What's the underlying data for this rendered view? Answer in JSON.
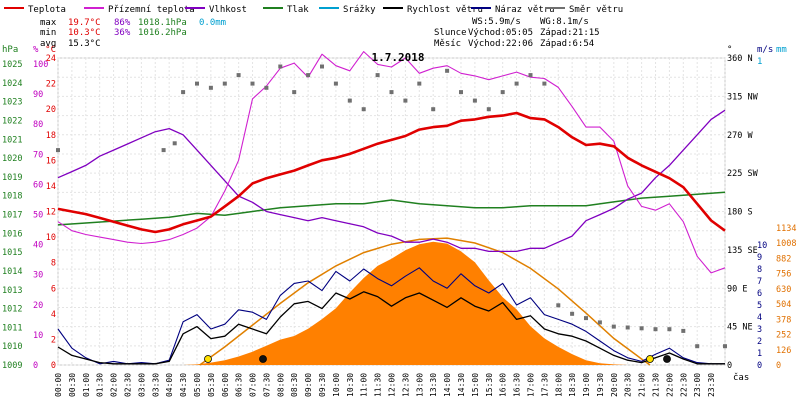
{
  "chart_data": {
    "type": "line",
    "title": "1.7.2018",
    "time_unit_label": "čas",
    "x_ticks": [
      "00:00",
      "00:30",
      "01:00",
      "01:30",
      "02:00",
      "02:30",
      "03:00",
      "03:30",
      "04:00",
      "04:30",
      "05:00",
      "05:30",
      "06:00",
      "06:30",
      "07:00",
      "07:30",
      "08:00",
      "08:30",
      "09:00",
      "09:30",
      "10:00",
      "10:30",
      "11:00",
      "11:30",
      "12:00",
      "12:30",
      "13:00",
      "13:30",
      "14:00",
      "14:30",
      "15:00",
      "15:30",
      "16:00",
      "16:30",
      "17:00",
      "17:30",
      "18:00",
      "18:30",
      "19:00",
      "19:30",
      "20:00",
      "20:30",
      "21:00",
      "21:30",
      "22:00",
      "22:30",
      "23:00",
      "23:30"
    ],
    "legend": [
      {
        "key": "temp",
        "label": "Teplota",
        "color": "#e00000"
      },
      {
        "key": "feels",
        "label": "Přízemní teplota",
        "color": "#d020d0"
      },
      {
        "key": "hum",
        "label": "Vlhkost",
        "color": "#8000c0"
      },
      {
        "key": "press",
        "label": "Tlak",
        "color": "#208020"
      },
      {
        "key": "rain",
        "label": "Srážky",
        "color": "#00a0d0"
      },
      {
        "key": "wind",
        "label": "Rychlost větru",
        "color": "#000000"
      },
      {
        "key": "gust",
        "label": "Náraz větru",
        "color": "#000080"
      },
      {
        "key": "dir",
        "label": "Směr větru",
        "color": "#707070"
      }
    ],
    "stats": {
      "max_label": "max",
      "min_label": "min",
      "avg_label": "avg",
      "max_temp": "19.7°C",
      "max_hum": "86%",
      "max_press": "1018.1hPa",
      "max_rain": "0.0mm",
      "min_temp": "10.3°C",
      "min_hum": "36%",
      "min_press": "1016.2hPa",
      "avg_temp": "15.3°C"
    },
    "wind_info": {
      "ws": "WS:5.9m/s",
      "wg": "WG:8.1m/s"
    },
    "sun_info": {
      "label": "Slunce",
      "rise": "Východ:05:05",
      "set": "Západ:21:15"
    },
    "moon_info": {
      "label": "Měsíc",
      "rise": "Východ:22:06",
      "set": "Západ:6:54"
    },
    "axes": {
      "hpa": {
        "label": "hPa",
        "ticks": [
          "1025",
          "1024",
          "1023",
          "1022",
          "1021",
          "1020",
          "1019",
          "1018",
          "1017",
          "1016",
          "1015",
          "1014",
          "1013",
          "1012",
          "1011",
          "1010",
          "1009"
        ]
      },
      "percent": {
        "label": "%",
        "ticks": [
          "100",
          "90",
          "80",
          "70",
          "60",
          "50",
          "40",
          "30",
          "20",
          "10",
          "0"
        ]
      },
      "celsius": {
        "label": "°C",
        "ticks": [
          "24",
          "22",
          "20",
          "18",
          "16",
          "14",
          "12",
          "10",
          "8",
          "6",
          "4",
          "2",
          "0"
        ]
      },
      "degrees": {
        "label": "°",
        "ticks": [
          "360 N",
          "315 NW",
          "270 W",
          "225 SW",
          "180 S",
          "135 SE",
          "90 E",
          "45 NE",
          "0"
        ]
      },
      "ms": {
        "label": "m/s",
        "ticks": [
          "10",
          "9",
          "8",
          "7",
          "6",
          "5",
          "4",
          "3",
          "2",
          "1",
          "0"
        ]
      },
      "mm": {
        "label": "mm",
        "ticks": [
          "1"
        ]
      },
      "solar": {
        "label": "",
        "ticks": [
          "1134",
          "1008",
          "882",
          "756",
          "630",
          "504",
          "378",
          "252",
          "126",
          "0"
        ]
      }
    },
    "temp": [
      [
        0,
        12.2
      ],
      [
        0.5,
        12.0
      ],
      [
        1,
        11.8
      ],
      [
        1.5,
        11.5
      ],
      [
        2,
        11.2
      ],
      [
        2.5,
        10.9
      ],
      [
        3,
        10.6
      ],
      [
        3.5,
        10.4
      ],
      [
        4,
        10.6
      ],
      [
        4.5,
        11.0
      ],
      [
        5,
        11.3
      ],
      [
        5.5,
        11.6
      ],
      [
        6,
        12.4
      ],
      [
        6.5,
        13.2
      ],
      [
        7,
        14.2
      ],
      [
        7.5,
        14.6
      ],
      [
        8,
        14.9
      ],
      [
        8.5,
        15.2
      ],
      [
        9,
        15.6
      ],
      [
        9.5,
        16.0
      ],
      [
        10,
        16.2
      ],
      [
        10.5,
        16.5
      ],
      [
        11,
        16.9
      ],
      [
        11.5,
        17.3
      ],
      [
        12,
        17.6
      ],
      [
        12.5,
        17.9
      ],
      [
        13,
        18.4
      ],
      [
        13.5,
        18.6
      ],
      [
        14,
        18.7
      ],
      [
        14.5,
        19.1
      ],
      [
        15,
        19.2
      ],
      [
        15.5,
        19.4
      ],
      [
        16,
        19.5
      ],
      [
        16.5,
        19.7
      ],
      [
        17,
        19.3
      ],
      [
        17.5,
        19.2
      ],
      [
        18,
        18.6
      ],
      [
        18.5,
        17.8
      ],
      [
        19,
        17.2
      ],
      [
        19.5,
        17.3
      ],
      [
        20,
        17.1
      ],
      [
        20.5,
        16.2
      ],
      [
        21,
        15.6
      ],
      [
        21.5,
        15.1
      ],
      [
        22,
        14.6
      ],
      [
        22.5,
        13.9
      ],
      [
        23,
        12.6
      ],
      [
        23.5,
        11.3
      ],
      [
        24,
        10.5
      ]
    ],
    "feels": [
      [
        0,
        11.2
      ],
      [
        0.5,
        10.5
      ],
      [
        1,
        10.2
      ],
      [
        1.5,
        10.0
      ],
      [
        2,
        9.8
      ],
      [
        2.5,
        9.6
      ],
      [
        3,
        9.5
      ],
      [
        3.5,
        9.6
      ],
      [
        4,
        9.8
      ],
      [
        4.5,
        10.2
      ],
      [
        5,
        10.7
      ],
      [
        5.5,
        11.6
      ],
      [
        6,
        13.6
      ],
      [
        6.5,
        16.0
      ],
      [
        7,
        20.8
      ],
      [
        7.5,
        21.8
      ],
      [
        8,
        23.2
      ],
      [
        8.5,
        23.6
      ],
      [
        9,
        22.5
      ],
      [
        9.5,
        24.3
      ],
      [
        10,
        23.4
      ],
      [
        10.5,
        23.0
      ],
      [
        11,
        24.5
      ],
      [
        11.5,
        23.5
      ],
      [
        12,
        23.3
      ],
      [
        12.5,
        24.0
      ],
      [
        13,
        22.8
      ],
      [
        13.5,
        23.2
      ],
      [
        14,
        23.4
      ],
      [
        14.5,
        22.8
      ],
      [
        15,
        22.6
      ],
      [
        15.5,
        22.3
      ],
      [
        16,
        22.6
      ],
      [
        16.5,
        22.9
      ],
      [
        17,
        22.5
      ],
      [
        17.5,
        22.4
      ],
      [
        18,
        21.7
      ],
      [
        18.5,
        20.2
      ],
      [
        19,
        18.6
      ],
      [
        19.5,
        18.6
      ],
      [
        20,
        17.5
      ],
      [
        20.5,
        14.0
      ],
      [
        21,
        12.4
      ],
      [
        21.5,
        12.1
      ],
      [
        22,
        12.6
      ],
      [
        22.5,
        11.2
      ],
      [
        23,
        8.5
      ],
      [
        23.5,
        7.2
      ],
      [
        24,
        7.6
      ]
    ],
    "hum": [
      [
        0,
        61
      ],
      [
        0.5,
        63
      ],
      [
        1,
        65
      ],
      [
        1.5,
        68
      ],
      [
        2,
        70
      ],
      [
        2.5,
        72
      ],
      [
        3,
        74
      ],
      [
        3.5,
        76
      ],
      [
        4,
        77
      ],
      [
        4.5,
        75
      ],
      [
        5,
        70
      ],
      [
        5.5,
        65
      ],
      [
        6,
        60
      ],
      [
        6.5,
        55
      ],
      [
        7,
        53
      ],
      [
        7.5,
        50
      ],
      [
        8,
        49
      ],
      [
        8.5,
        48
      ],
      [
        9,
        47
      ],
      [
        9.5,
        48
      ],
      [
        10,
        47
      ],
      [
        10.5,
        46
      ],
      [
        11,
        45
      ],
      [
        11.5,
        43
      ],
      [
        12,
        42
      ],
      [
        12.5,
        40
      ],
      [
        13,
        40
      ],
      [
        13.5,
        41
      ],
      [
        14,
        40
      ],
      [
        14.5,
        38
      ],
      [
        15,
        38
      ],
      [
        15.5,
        37
      ],
      [
        16,
        37
      ],
      [
        16.5,
        37
      ],
      [
        17,
        38
      ],
      [
        17.5,
        38
      ],
      [
        18,
        40
      ],
      [
        18.5,
        42
      ],
      [
        19,
        47
      ],
      [
        19.5,
        49
      ],
      [
        20,
        51
      ],
      [
        20.5,
        54
      ],
      [
        21,
        56
      ],
      [
        21.5,
        61
      ],
      [
        22,
        65
      ],
      [
        22.5,
        70
      ],
      [
        23,
        75
      ],
      [
        23.5,
        80
      ],
      [
        24,
        83
      ]
    ],
    "press": [
      [
        0,
        1016.3
      ],
      [
        1,
        1016.4
      ],
      [
        2,
        1016.5
      ],
      [
        3,
        1016.6
      ],
      [
        4,
        1016.7
      ],
      [
        5,
        1016.9
      ],
      [
        6,
        1016.8
      ],
      [
        7,
        1017.0
      ],
      [
        8,
        1017.2
      ],
      [
        9,
        1017.3
      ],
      [
        10,
        1017.4
      ],
      [
        11,
        1017.4
      ],
      [
        12,
        1017.6
      ],
      [
        13,
        1017.4
      ],
      [
        14,
        1017.3
      ],
      [
        15,
        1017.2
      ],
      [
        16,
        1017.2
      ],
      [
        17,
        1017.3
      ],
      [
        18,
        1017.3
      ],
      [
        19,
        1017.3
      ],
      [
        20,
        1017.5
      ],
      [
        21,
        1017.7
      ],
      [
        22,
        1017.8
      ],
      [
        23,
        1017.9
      ],
      [
        24,
        1018.0
      ]
    ],
    "wind": [
      [
        0,
        1.5
      ],
      [
        0.5,
        0.8
      ],
      [
        1,
        0.5
      ],
      [
        1.5,
        0.2
      ],
      [
        2,
        0.1
      ],
      [
        2.5,
        0.1
      ],
      [
        3,
        0.1
      ],
      [
        3.5,
        0.1
      ],
      [
        4,
        0.3
      ],
      [
        4.5,
        2.6
      ],
      [
        5,
        3.2
      ],
      [
        5.5,
        2.2
      ],
      [
        6,
        2.4
      ],
      [
        6.5,
        3.4
      ],
      [
        7,
        3.0
      ],
      [
        7.5,
        2.6
      ],
      [
        8,
        4.0
      ],
      [
        8.5,
        5.1
      ],
      [
        9,
        5.3
      ],
      [
        9.5,
        4.7
      ],
      [
        10,
        6.0
      ],
      [
        10.5,
        5.5
      ],
      [
        11,
        6.1
      ],
      [
        11.5,
        5.7
      ],
      [
        12,
        4.9
      ],
      [
        12.5,
        5.6
      ],
      [
        13,
        6.0
      ],
      [
        13.5,
        5.4
      ],
      [
        14,
        4.8
      ],
      [
        14.5,
        5.6
      ],
      [
        15,
        4.9
      ],
      [
        15.5,
        4.5
      ],
      [
        16,
        5.2
      ],
      [
        16.5,
        3.8
      ],
      [
        17,
        4.1
      ],
      [
        17.5,
        3.0
      ],
      [
        18,
        2.6
      ],
      [
        18.5,
        2.4
      ],
      [
        19,
        2.0
      ],
      [
        19.5,
        1.4
      ],
      [
        20,
        0.8
      ],
      [
        20.5,
        0.4
      ],
      [
        21,
        0.2
      ],
      [
        21.5,
        0.6
      ],
      [
        22,
        1.0
      ],
      [
        22.5,
        0.5
      ],
      [
        23,
        0.1
      ],
      [
        23.5,
        0.1
      ],
      [
        24,
        0.1
      ]
    ],
    "gust": [
      [
        0,
        3.0
      ],
      [
        0.5,
        1.4
      ],
      [
        1,
        0.6
      ],
      [
        1.5,
        0.1
      ],
      [
        2,
        0.3
      ],
      [
        2.5,
        0.1
      ],
      [
        3,
        0.2
      ],
      [
        3.5,
        0.1
      ],
      [
        4,
        0.4
      ],
      [
        4.5,
        3.6
      ],
      [
        5,
        4.2
      ],
      [
        5.5,
        3.0
      ],
      [
        6,
        3.4
      ],
      [
        6.5,
        4.6
      ],
      [
        7,
        4.4
      ],
      [
        7.5,
        3.8
      ],
      [
        8,
        5.8
      ],
      [
        8.5,
        6.8
      ],
      [
        9,
        7.0
      ],
      [
        9.5,
        6.2
      ],
      [
        10,
        7.8
      ],
      [
        10.5,
        7.0
      ],
      [
        11,
        8.0
      ],
      [
        11.5,
        7.2
      ],
      [
        12,
        6.6
      ],
      [
        12.5,
        7.4
      ],
      [
        13,
        8.1
      ],
      [
        13.5,
        7.0
      ],
      [
        14,
        6.4
      ],
      [
        14.5,
        7.6
      ],
      [
        15,
        6.6
      ],
      [
        15.5,
        6.0
      ],
      [
        16,
        6.8
      ],
      [
        16.5,
        5.0
      ],
      [
        17,
        5.6
      ],
      [
        17.5,
        4.2
      ],
      [
        18,
        3.8
      ],
      [
        18.5,
        3.4
      ],
      [
        19,
        2.8
      ],
      [
        19.5,
        2.0
      ],
      [
        20,
        1.2
      ],
      [
        20.5,
        0.6
      ],
      [
        21,
        0.3
      ],
      [
        21.5,
        0.9
      ],
      [
        22,
        1.4
      ],
      [
        22.5,
        0.6
      ],
      [
        23,
        0.2
      ],
      [
        23.5,
        0.1
      ],
      [
        24,
        0.1
      ]
    ],
    "dir": [
      [
        0,
        252
      ],
      [
        3.8,
        252
      ],
      [
        4.2,
        260
      ],
      [
        4.5,
        320
      ],
      [
        5,
        330
      ],
      [
        5.5,
        325
      ],
      [
        6,
        330
      ],
      [
        6.5,
        340
      ],
      [
        7,
        330
      ],
      [
        7.5,
        325
      ],
      [
        8,
        350
      ],
      [
        8.5,
        320
      ],
      [
        9,
        340
      ],
      [
        9.5,
        350
      ],
      [
        10,
        330
      ],
      [
        10.5,
        310
      ],
      [
        11,
        300
      ],
      [
        11.5,
        340
      ],
      [
        12,
        320
      ],
      [
        12.5,
        310
      ],
      [
        13,
        330
      ],
      [
        13.5,
        300
      ],
      [
        14,
        345
      ],
      [
        14.5,
        320
      ],
      [
        15,
        310
      ],
      [
        15.5,
        300
      ],
      [
        16,
        320
      ],
      [
        16.5,
        330
      ],
      [
        17,
        340
      ],
      [
        17.5,
        330
      ],
      [
        18,
        70
      ],
      [
        18.5,
        60
      ],
      [
        19,
        55
      ],
      [
        19.5,
        50
      ],
      [
        20,
        45
      ],
      [
        20.5,
        44
      ],
      [
        21,
        43
      ],
      [
        21.5,
        42
      ],
      [
        22,
        42
      ],
      [
        22.5,
        40
      ],
      [
        23,
        22
      ],
      [
        24,
        22
      ]
    ],
    "solar": [
      [
        0,
        0
      ],
      [
        4.5,
        0
      ],
      [
        5,
        5
      ],
      [
        5.5,
        20
      ],
      [
        6,
        40
      ],
      [
        6.5,
        70
      ],
      [
        7,
        110
      ],
      [
        7.5,
        160
      ],
      [
        8,
        210
      ],
      [
        8.5,
        240
      ],
      [
        9,
        300
      ],
      [
        9.5,
        380
      ],
      [
        10,
        470
      ],
      [
        10.5,
        600
      ],
      [
        11,
        720
      ],
      [
        11.5,
        820
      ],
      [
        12,
        880
      ],
      [
        12.5,
        950
      ],
      [
        13,
        1000
      ],
      [
        13.5,
        1020
      ],
      [
        14,
        1005
      ],
      [
        14.5,
        940
      ],
      [
        15,
        850
      ],
      [
        15.5,
        700
      ],
      [
        16,
        560
      ],
      [
        16.5,
        460
      ],
      [
        17,
        320
      ],
      [
        17.5,
        220
      ],
      [
        18,
        150
      ],
      [
        18.5,
        90
      ],
      [
        19,
        40
      ],
      [
        19.5,
        15
      ],
      [
        20,
        5
      ],
      [
        20.5,
        0
      ],
      [
        24,
        0
      ]
    ],
    "solar_max": [
      [
        5.1,
        0
      ],
      [
        6,
        150
      ],
      [
        7,
        330
      ],
      [
        8,
        510
      ],
      [
        9,
        680
      ],
      [
        10,
        820
      ],
      [
        11,
        930
      ],
      [
        12,
        1000
      ],
      [
        13,
        1040
      ],
      [
        14,
        1050
      ],
      [
        15,
        1010
      ],
      [
        16,
        930
      ],
      [
        17,
        800
      ],
      [
        18,
        630
      ],
      [
        19,
        430
      ],
      [
        20,
        220
      ],
      [
        21,
        50
      ],
      [
        21.3,
        0
      ]
    ],
    "rain": []
  }
}
